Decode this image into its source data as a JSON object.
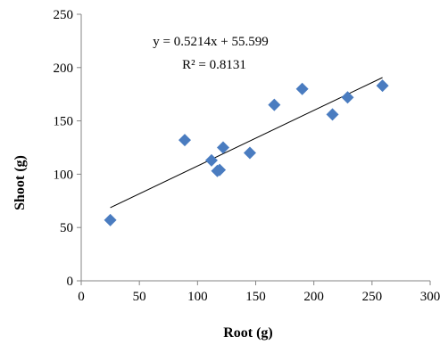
{
  "chart_data": {
    "type": "scatter",
    "xlabel": "Root (g)",
    "ylabel": "Shoot (g)",
    "xlim": [
      0,
      300
    ],
    "ylim": [
      0,
      250
    ],
    "x_ticks": [
      "0",
      "50",
      "100",
      "150",
      "200",
      "250",
      "300"
    ],
    "y_ticks": [
      "0",
      "50",
      "100",
      "150",
      "200",
      "250"
    ],
    "grid": false,
    "legend": "none",
    "marker": "diamond",
    "marker_color": "#4a7cc0",
    "trendline": {
      "type": "linear",
      "slope": 0.5214,
      "intercept": 55.599,
      "x_range": [
        25,
        259
      ],
      "color": "#000000"
    },
    "annotations": {
      "equation": "y = 0.5214x + 55.599",
      "r_squared": "R² = 0.8131"
    },
    "points": [
      {
        "x": 25,
        "y": 57
      },
      {
        "x": 89,
        "y": 132
      },
      {
        "x": 112,
        "y": 113
      },
      {
        "x": 117,
        "y": 103
      },
      {
        "x": 119,
        "y": 104
      },
      {
        "x": 122,
        "y": 125
      },
      {
        "x": 145,
        "y": 120
      },
      {
        "x": 166,
        "y": 165
      },
      {
        "x": 190,
        "y": 180
      },
      {
        "x": 216,
        "y": 156
      },
      {
        "x": 229,
        "y": 172
      },
      {
        "x": 259,
        "y": 183
      }
    ]
  }
}
